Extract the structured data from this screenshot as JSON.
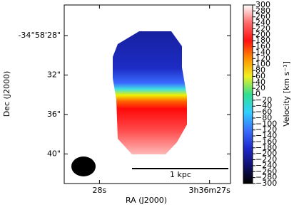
{
  "chart_data": {
    "type": "image",
    "xlabel": "RA (J2000)",
    "ylabel": "Dec (J2000)",
    "xlim": [
      28.32,
      26.81
    ],
    "ylim": [
      43.0,
      24.9
    ],
    "xticks": [
      {
        "value": 28,
        "label": "28s"
      },
      {
        "value": 27,
        "label": "3h36m27s"
      }
    ],
    "yticks": [
      {
        "value": 28,
        "label": "-34°58'28\""
      },
      {
        "value": 32,
        "label": "32\""
      },
      {
        "value": 36,
        "label": "36\""
      },
      {
        "value": 40,
        "label": "40\""
      }
    ],
    "colorbar": {
      "label": "Velocity [km s⁻¹]",
      "clim": [
        -300,
        300
      ],
      "colormap": [
        "#000000",
        "#10106e",
        "#1e2ad0",
        "#3a70ff",
        "#30d0ff",
        "#30e090",
        "#f0f020",
        "#ff9000",
        "#ff1010",
        "#ff6a6a",
        "#ffffff"
      ],
      "ticks": [
        {
          "value": -300,
          "label": "−300"
        },
        {
          "value": -280,
          "label": "−280"
        },
        {
          "value": -260,
          "label": "−260"
        },
        {
          "value": -240,
          "label": "−240"
        },
        {
          "value": -220,
          "label": "−220"
        },
        {
          "value": -200,
          "label": "−200"
        },
        {
          "value": -180,
          "label": "−180"
        },
        {
          "value": -160,
          "label": "−160"
        },
        {
          "value": -140,
          "label": "−140"
        },
        {
          "value": -120,
          "label": "−120"
        },
        {
          "value": -100,
          "label": "−100"
        },
        {
          "value": -80,
          "label": "−80"
        },
        {
          "value": -60,
          "label": "−60"
        },
        {
          "value": -40,
          "label": "−40"
        },
        {
          "value": -20,
          "label": "−20"
        },
        0,
        20,
        40,
        60,
        80,
        100,
        120,
        140,
        160,
        180,
        200,
        220,
        240,
        260,
        280,
        300
      ]
    },
    "scale_bar_label": "1 kpc"
  }
}
